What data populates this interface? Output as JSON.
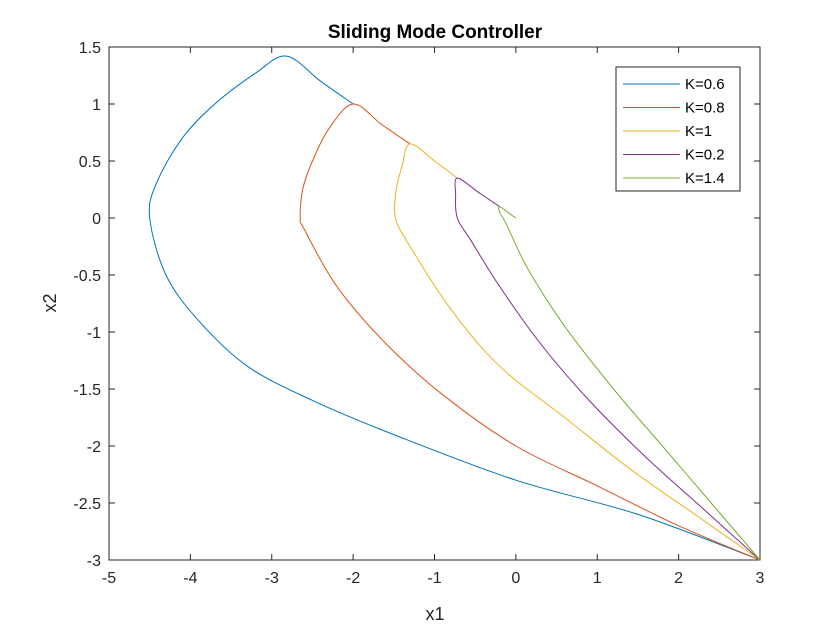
{
  "chart_data": {
    "type": "line",
    "title": "Sliding Mode Controller",
    "xlabel": "x1",
    "ylabel": "x2",
    "xlim": [
      -5,
      3
    ],
    "ylim": [
      -3,
      1.5
    ],
    "xticks": [
      "-5",
      "-4",
      "-3",
      "-2",
      "-1",
      "0",
      "1",
      "2",
      "3"
    ],
    "yticks": [
      "-3",
      "-2.5",
      "-2",
      "-1.5",
      "-1",
      "-0.5",
      "0",
      "0.5",
      "1",
      "1.5"
    ],
    "grid": false,
    "legend_position": "top-right",
    "series": [
      {
        "name": "K=0.6",
        "color": "#0072BD",
        "points": [
          [
            3,
            -3
          ],
          [
            1.5,
            -2.6
          ],
          [
            0,
            -2.3
          ],
          [
            -1.5,
            -1.9
          ],
          [
            -2.5,
            -1.6
          ],
          [
            -3.3,
            -1.3
          ],
          [
            -3.9,
            -0.9
          ],
          [
            -4.3,
            -0.5
          ],
          [
            -4.5,
            0
          ],
          [
            -4.42,
            0.3
          ],
          [
            -4.1,
            0.7
          ],
          [
            -3.7,
            1.0
          ],
          [
            -3.2,
            1.27
          ],
          [
            -2.82,
            1.42
          ],
          [
            -2.4,
            1.2
          ],
          [
            -2.0,
            1.0
          ]
        ]
      },
      {
        "name": "K=0.8",
        "color": "#D95319",
        "points": [
          [
            3,
            -3
          ],
          [
            2,
            -2.7
          ],
          [
            1,
            -2.35
          ],
          [
            0,
            -2.0
          ],
          [
            -0.9,
            -1.55
          ],
          [
            -1.6,
            -1.1
          ],
          [
            -2.2,
            -0.6
          ],
          [
            -2.6,
            -0.1
          ],
          [
            -2.65,
            0
          ],
          [
            -2.62,
            0.25
          ],
          [
            -2.5,
            0.5
          ],
          [
            -2.3,
            0.78
          ],
          [
            -2.0,
            1.0
          ],
          [
            -1.65,
            0.82
          ],
          [
            -1.3,
            0.65
          ]
        ]
      },
      {
        "name": "K=1",
        "color": "#EDB120",
        "points": [
          [
            3,
            -3
          ],
          [
            2.2,
            -2.6
          ],
          [
            1.4,
            -2.2
          ],
          [
            0.6,
            -1.75
          ],
          [
            -0.2,
            -1.3
          ],
          [
            -0.8,
            -0.8
          ],
          [
            -1.3,
            -0.25
          ],
          [
            -1.48,
            0
          ],
          [
            -1.47,
            0.25
          ],
          [
            -1.4,
            0.45
          ],
          [
            -1.3,
            0.65
          ],
          [
            -1.0,
            0.5
          ],
          [
            -0.72,
            0.35
          ]
        ]
      },
      {
        "name": "K=0.2",
        "color": "#7E2F8E",
        "points": [
          [
            3,
            -3
          ],
          [
            2.3,
            -2.55
          ],
          [
            1.6,
            -2.1
          ],
          [
            0.9,
            -1.6
          ],
          [
            0.3,
            -1.1
          ],
          [
            -0.2,
            -0.6
          ],
          [
            -0.55,
            -0.2
          ],
          [
            -0.72,
            0
          ],
          [
            -0.74,
            0.2
          ],
          [
            -0.72,
            0.35
          ],
          [
            -0.45,
            0.22
          ],
          [
            -0.2,
            0.1
          ]
        ]
      },
      {
        "name": "K=1.4",
        "color": "#77AC30",
        "points": [
          [
            3,
            -3
          ],
          [
            2.4,
            -2.5
          ],
          [
            1.8,
            -2.0
          ],
          [
            1.2,
            -1.5
          ],
          [
            0.6,
            -0.95
          ],
          [
            0.15,
            -0.45
          ],
          [
            -0.12,
            -0.05
          ],
          [
            -0.2,
            0.05
          ],
          [
            -0.2,
            0.1
          ],
          [
            -0.1,
            0.05
          ],
          [
            0,
            0
          ]
        ]
      }
    ]
  }
}
